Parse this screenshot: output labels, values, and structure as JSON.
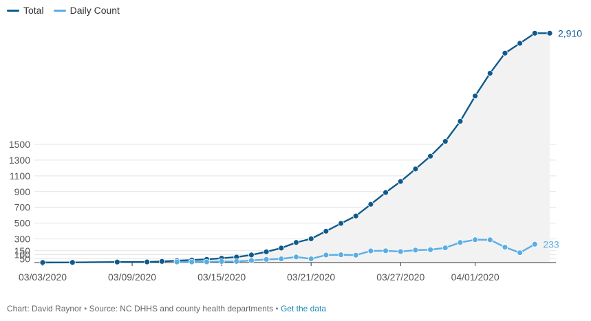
{
  "chart_data": {
    "type": "line",
    "title": "",
    "xlabel": "",
    "ylabel": "",
    "x": [
      "03/03/2020",
      "03/05/2020",
      "03/08/2020",
      "03/10/2020",
      "03/11/2020",
      "03/12/2020",
      "03/13/2020",
      "03/14/2020",
      "03/15/2020",
      "03/16/2020",
      "03/17/2020",
      "03/18/2020",
      "03/19/2020",
      "03/20/2020",
      "03/21/2020",
      "03/22/2020",
      "03/23/2020",
      "03/24/2020",
      "03/25/2020",
      "03/26/2020",
      "03/27/2020",
      "03/28/2020",
      "03/29/2020",
      "03/30/2020",
      "03/31/2020",
      "04/01/2020",
      "04/02/2020",
      "04/03/2020",
      "04/04/2020",
      "04/05/2020",
      "04/06/2020"
    ],
    "x_ticks": [
      "03/03/2020",
      "03/09/2020",
      "03/15/2020",
      "03/21/2020",
      "03/27/2020",
      "04/01/2020"
    ],
    "y_ticks": [
      50,
      100,
      150,
      300,
      500,
      700,
      900,
      1100,
      1300,
      1500
    ],
    "ylim": [
      0,
      3000
    ],
    "grid": true,
    "legend_position": "top-left",
    "series": [
      {
        "name": "Total",
        "color": "#0f5a8c",
        "end_label": "2,910",
        "values": [
          1,
          2,
          7,
          8,
          15,
          24,
          32,
          41,
          55,
          70,
          97,
          137,
          184,
          255,
          302,
          398,
          497,
          591,
          739,
          889,
          1029,
          1187,
          1350,
          1538,
          1793,
          2113,
          2402,
          2657,
          2782,
          2910,
          2910
        ]
      },
      {
        "name": "Daily Count",
        "color": "#5aaee3",
        "end_label": "233",
        "values": [
          null,
          null,
          null,
          null,
          null,
          8,
          8,
          9,
          14,
          15,
          27,
          40,
          47,
          71,
          47,
          96,
          99,
          94,
          148,
          150,
          140,
          158,
          163,
          187,
          255,
          290,
          289,
          195,
          125,
          233,
          null
        ]
      }
    ],
    "footer": {
      "credit": "Chart: David Raynor",
      "separator": "•",
      "source": "Source: NC DHHS and county health departments",
      "link": "Get the data"
    }
  }
}
